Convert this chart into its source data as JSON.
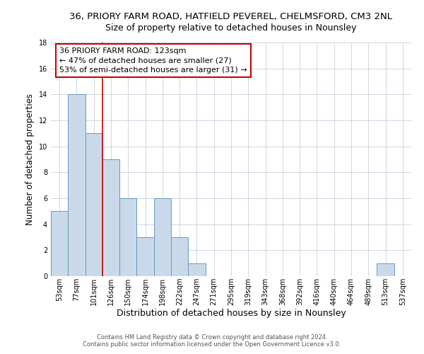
{
  "title1": "36, PRIORY FARM ROAD, HATFIELD PEVEREL, CHELMSFORD, CM3 2NL",
  "title2": "Size of property relative to detached houses in Nounsley",
  "xlabel": "Distribution of detached houses by size in Nounsley",
  "ylabel": "Number of detached properties",
  "bar_values": [
    5,
    14,
    11,
    9,
    6,
    3,
    6,
    3,
    1,
    0,
    0,
    0,
    0,
    0,
    0,
    0,
    0,
    0,
    0,
    1,
    0,
    0
  ],
  "bin_labels": [
    "53sqm",
    "77sqm",
    "101sqm",
    "126sqm",
    "150sqm",
    "174sqm",
    "198sqm",
    "222sqm",
    "247sqm",
    "271sqm",
    "295sqm",
    "319sqm",
    "343sqm",
    "368sqm",
    "392sqm",
    "416sqm",
    "440sqm",
    "464sqm",
    "489sqm",
    "513sqm",
    "537sqm"
  ],
  "bar_color": "#c9d9ea",
  "bar_edge_color": "#6699bb",
  "bar_edge_width": 0.7,
  "grid_color": "#c8d0dc",
  "background_color": "#ffffff",
  "annotation_box_text": "36 PRIORY FARM ROAD: 123sqm\n← 47% of detached houses are smaller (27)\n53% of semi-detached houses are larger (31) →",
  "annotation_box_color": "#ffffff",
  "annotation_box_edge_color": "#cc0000",
  "vline_x": 3.0,
  "vline_color": "#cc0000",
  "vline_linewidth": 1.2,
  "ylim": [
    0,
    18
  ],
  "yticks": [
    0,
    2,
    4,
    6,
    8,
    10,
    12,
    14,
    16,
    18
  ],
  "footnote1": "Contains HM Land Registry data © Crown copyright and database right 2024.",
  "footnote2": "Contains public sector information licensed under the Open Government Licence v3.0.",
  "title1_fontsize": 9.5,
  "title2_fontsize": 9,
  "xlabel_fontsize": 9,
  "ylabel_fontsize": 8.5,
  "tick_fontsize": 7,
  "annotation_fontsize": 8,
  "footnote_fontsize": 6
}
